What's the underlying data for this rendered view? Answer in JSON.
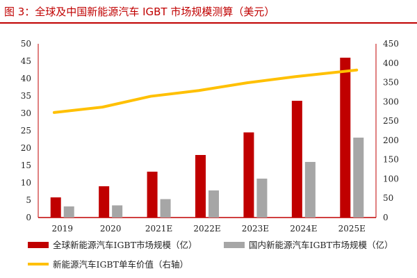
{
  "title": "图 3：全球及中国新能源汽车 IGBT 市场规模测算（美元）",
  "colors": {
    "global": "#c00000",
    "china": "#a6a6a6",
    "line": "#ffc000",
    "axis": "#c00000"
  },
  "chart_data": {
    "type": "bar",
    "title": "图 3：全球及中国新能源汽车 IGBT 市场规模测算（美元）",
    "categories": [
      "2019",
      "2020",
      "2021E",
      "2022E",
      "2023E",
      "2024E",
      "2025E"
    ],
    "series": [
      {
        "name": "全球新能源汽车IGBT市场规模（亿）",
        "type": "bar",
        "axis": "left",
        "values": [
          5.8,
          9.0,
          13.2,
          18.0,
          24.5,
          33.6,
          46.0
        ]
      },
      {
        "name": "国内新能源汽车IGBT市场规模（亿）",
        "type": "bar",
        "axis": "left",
        "values": [
          3.2,
          3.5,
          5.3,
          7.8,
          11.2,
          16.0,
          23.0
        ]
      },
      {
        "name": "新能源汽车IGBT单车价值（右轴）",
        "type": "line",
        "axis": "right",
        "values": [
          272,
          286,
          314,
          329,
          349,
          365,
          382
        ]
      }
    ],
    "ylim": [
      0,
      50
    ],
    "yticks": [
      "0",
      "5",
      "10",
      "15",
      "20",
      "25",
      "30",
      "35",
      "40",
      "45",
      "50"
    ],
    "y2lim": [
      0,
      450
    ],
    "y2ticks": [
      "0",
      "50",
      "100",
      "150",
      "200",
      "250",
      "300",
      "350",
      "400",
      "450"
    ],
    "grid": false,
    "legend": "bottom"
  }
}
